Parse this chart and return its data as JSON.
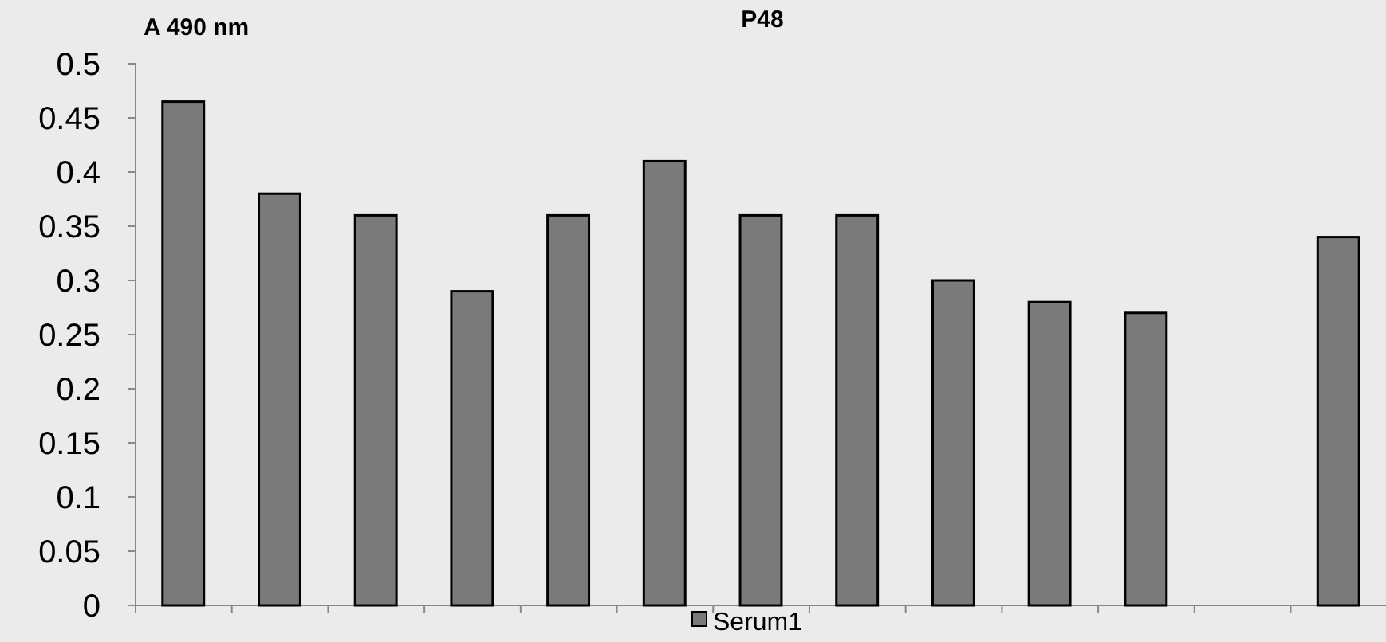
{
  "chart_data": {
    "type": "bar",
    "title": "P48",
    "ylabel": "A 490 nm",
    "categories": [
      null,
      null,
      null,
      null,
      null,
      null,
      null,
      null,
      null,
      null,
      null,
      null,
      null
    ],
    "series": [
      {
        "name": "Serum1",
        "color": "#7a7a7a",
        "values": [
          0.465,
          0.38,
          0.36,
          0.29,
          0.36,
          0.41,
          0.36,
          0.36,
          0.3,
          0.28,
          0.27,
          null,
          0.34
        ]
      }
    ],
    "ylim": [
      0,
      0.5
    ],
    "yticks": [
      0,
      0.05,
      0.1,
      0.15,
      0.2,
      0.25,
      0.3,
      0.35,
      0.4,
      0.45,
      0.5
    ],
    "grid": false,
    "legend": "bottom"
  }
}
